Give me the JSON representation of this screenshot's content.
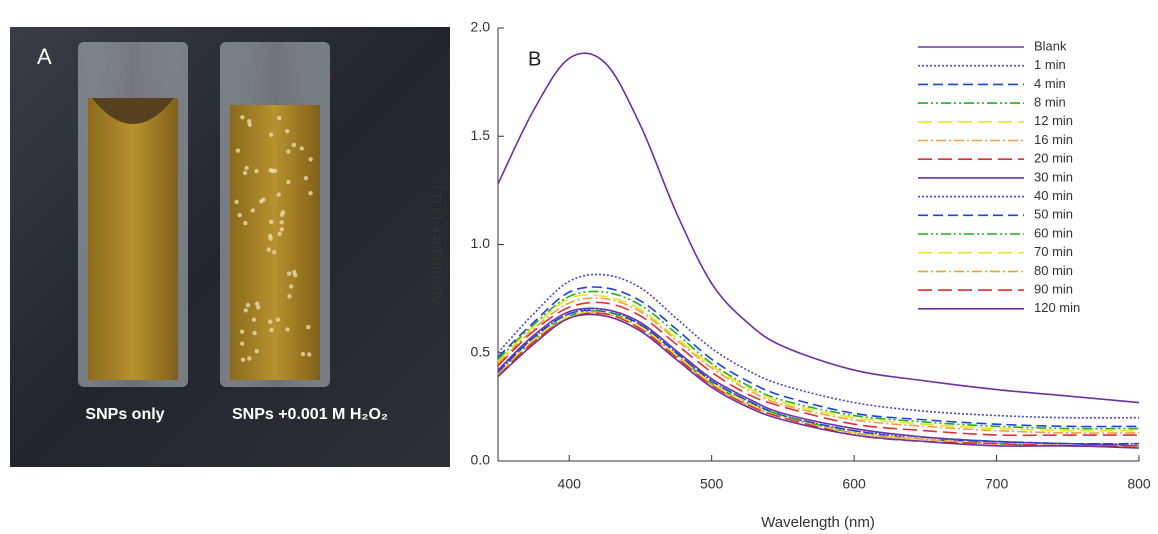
{
  "panel_a": {
    "label": "A",
    "left_caption": "SNPs only",
    "right_caption": "SNPs +0.001 M H₂O₂"
  },
  "chart_data": {
    "type": "line",
    "panel_label": "B",
    "xlabel": "Wavelength (nm)",
    "ylabel": "Absorbance (a.u.)",
    "xlim": [
      350,
      800
    ],
    "xticks": [
      400,
      500,
      600,
      700,
      800
    ],
    "ylim": [
      0,
      2
    ],
    "yticks": [
      {
        "value": 0,
        "label": "0.0"
      },
      {
        "value": 0.5,
        "label": "0.5"
      },
      {
        "value": 1,
        "label": "1.0"
      },
      {
        "value": 1.5,
        "label": "1.5"
      },
      {
        "value": 2,
        "label": "2.0"
      }
    ],
    "legend": "upper right",
    "x": [
      350,
      375,
      400,
      425,
      450,
      475,
      500,
      525,
      550,
      600,
      650,
      700,
      750,
      800
    ],
    "series": [
      {
        "name": "Blank",
        "color": "#7030a0",
        "dash": "solid",
        "values": [
          1.28,
          1.62,
          1.86,
          1.84,
          1.55,
          1.15,
          0.82,
          0.64,
          0.53,
          0.42,
          0.37,
          0.33,
          0.3,
          0.27
        ]
      },
      {
        "name": "1 min",
        "color": "#4848c0",
        "dash": "dotted",
        "values": [
          0.5,
          0.68,
          0.83,
          0.86,
          0.8,
          0.66,
          0.52,
          0.42,
          0.35,
          0.27,
          0.23,
          0.21,
          0.2,
          0.2
        ]
      },
      {
        "name": "4 min",
        "color": "#2040e0",
        "dash": "dashed",
        "values": [
          0.48,
          0.64,
          0.78,
          0.8,
          0.74,
          0.61,
          0.47,
          0.37,
          0.3,
          0.22,
          0.19,
          0.17,
          0.16,
          0.16
        ]
      },
      {
        "name": "8 min",
        "color": "#20b020",
        "dash": "dashdotdot",
        "values": [
          0.47,
          0.63,
          0.76,
          0.78,
          0.72,
          0.59,
          0.45,
          0.35,
          0.28,
          0.21,
          0.18,
          0.16,
          0.15,
          0.15
        ]
      },
      {
        "name": "12 min",
        "color": "#e8e820",
        "dash": "longdash",
        "values": [
          0.46,
          0.62,
          0.75,
          0.76,
          0.7,
          0.57,
          0.44,
          0.34,
          0.27,
          0.2,
          0.17,
          0.15,
          0.14,
          0.14
        ]
      },
      {
        "name": "16 min",
        "color": "#f0a040",
        "dash": "dashdot",
        "values": [
          0.45,
          0.61,
          0.73,
          0.75,
          0.69,
          0.56,
          0.43,
          0.33,
          0.26,
          0.19,
          0.16,
          0.14,
          0.13,
          0.13
        ]
      },
      {
        "name": "20 min",
        "color": "#e03030",
        "dash": "longdash",
        "values": [
          0.44,
          0.6,
          0.71,
          0.73,
          0.67,
          0.54,
          0.41,
          0.31,
          0.25,
          0.17,
          0.14,
          0.12,
          0.12,
          0.12
        ]
      },
      {
        "name": "30 min",
        "color": "#7030a0",
        "dash": "solid",
        "values": [
          0.42,
          0.58,
          0.69,
          0.7,
          0.64,
          0.51,
          0.38,
          0.29,
          0.22,
          0.15,
          0.11,
          0.09,
          0.08,
          0.07
        ]
      },
      {
        "name": "40 min",
        "color": "#4848c0",
        "dash": "dotted",
        "values": [
          0.41,
          0.57,
          0.68,
          0.7,
          0.63,
          0.5,
          0.37,
          0.28,
          0.21,
          0.14,
          0.11,
          0.09,
          0.08,
          0.08
        ]
      },
      {
        "name": "50 min",
        "color": "#2040e0",
        "dash": "dashed",
        "values": [
          0.41,
          0.57,
          0.68,
          0.69,
          0.63,
          0.5,
          0.37,
          0.28,
          0.21,
          0.14,
          0.1,
          0.09,
          0.08,
          0.08
        ]
      },
      {
        "name": "60 min",
        "color": "#20b020",
        "dash": "dashdotdot",
        "values": [
          0.4,
          0.56,
          0.67,
          0.69,
          0.62,
          0.49,
          0.36,
          0.27,
          0.21,
          0.13,
          0.1,
          0.08,
          0.07,
          0.07
        ]
      },
      {
        "name": "70 min",
        "color": "#e8e820",
        "dash": "longdash",
        "values": [
          0.4,
          0.56,
          0.67,
          0.68,
          0.62,
          0.49,
          0.36,
          0.27,
          0.2,
          0.13,
          0.1,
          0.08,
          0.07,
          0.07
        ]
      },
      {
        "name": "80 min",
        "color": "#f0a040",
        "dash": "dashdot",
        "values": [
          0.4,
          0.55,
          0.66,
          0.68,
          0.61,
          0.48,
          0.35,
          0.26,
          0.2,
          0.13,
          0.1,
          0.08,
          0.07,
          0.07
        ]
      },
      {
        "name": "90 min",
        "color": "#e03030",
        "dash": "longdash",
        "values": [
          0.39,
          0.55,
          0.66,
          0.68,
          0.61,
          0.48,
          0.35,
          0.26,
          0.2,
          0.12,
          0.09,
          0.08,
          0.07,
          0.07
        ]
      },
      {
        "name": "120 min",
        "color": "#7030a0",
        "dash": "solid",
        "values": [
          0.39,
          0.54,
          0.66,
          0.67,
          0.6,
          0.47,
          0.34,
          0.25,
          0.19,
          0.12,
          0.09,
          0.07,
          0.07,
          0.06
        ]
      }
    ]
  }
}
